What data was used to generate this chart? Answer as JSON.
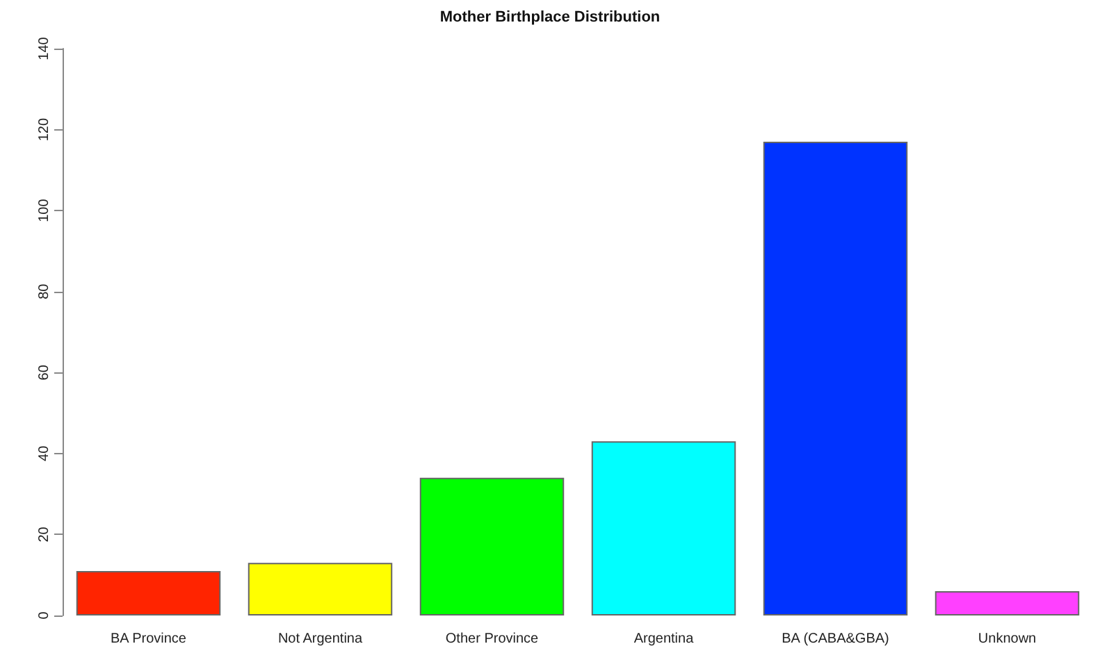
{
  "chart_data": {
    "type": "bar",
    "title": "Mother Birthplace Distribution",
    "categories": [
      "BA Province",
      "Not Argentina",
      "Other Province",
      "Argentina",
      "BA (CABA&GBA)",
      "Unknown"
    ],
    "values": [
      11,
      13,
      34,
      43,
      117,
      6
    ],
    "colors": [
      "#ff2400",
      "#ffff00",
      "#00ff00",
      "#00ffff",
      "#0033ff",
      "#ff40ff"
    ],
    "ylim": [
      0,
      140
    ],
    "yticks": [
      0,
      20,
      40,
      60,
      80,
      100,
      120,
      140
    ],
    "grid": false
  }
}
